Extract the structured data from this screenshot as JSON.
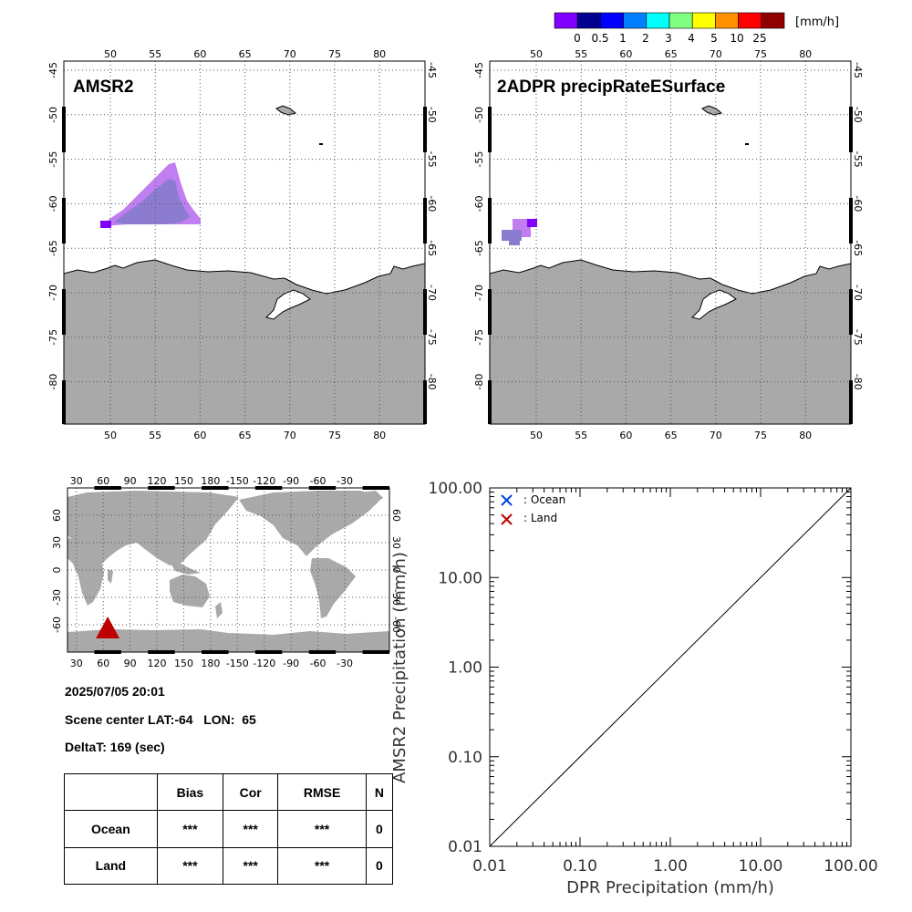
{
  "colorbar": {
    "unit": "[mm/h]",
    "tick_labels": [
      "0",
      "0.5",
      "1",
      "2",
      "3",
      "4",
      "5",
      "10",
      "25"
    ],
    "colors": [
      "#8000ff",
      "#000090",
      "#0000ff",
      "#0080ff",
      "#00ffff",
      "#80ff80",
      "#ffff00",
      "#ff9000",
      "#ff0000",
      "#900000"
    ]
  },
  "maps": [
    {
      "title": "AMSR2",
      "lon_ticks": [
        "50",
        "55",
        "60",
        "65",
        "70",
        "75",
        "80"
      ],
      "lat_ticks": [
        "-45",
        "-50",
        "-55",
        "-60",
        "-65",
        "-70",
        "-75",
        "-80"
      ]
    },
    {
      "title": "2ADPR precipRateESurface",
      "lon_ticks": [
        "50",
        "55",
        "60",
        "65",
        "70",
        "75",
        "80"
      ],
      "lat_ticks": [
        "-45",
        "-50",
        "-55",
        "-60",
        "-65",
        "-70",
        "-75",
        "-80"
      ]
    }
  ],
  "globe": {
    "lon_ticks": [
      "30",
      "60",
      "90",
      "120",
      "150",
      "180",
      "-150",
      "-120",
      "-90",
      "-60",
      "-30"
    ],
    "lat_ticks": [
      "60",
      "30",
      "0",
      "-30",
      "-60"
    ],
    "marker": {
      "lon": 65,
      "lat": -64,
      "color": "#c00000",
      "shape": "triangle"
    }
  },
  "info": {
    "datetime": "2025/07/05 20:01",
    "scene_center": "Scene center LAT:-64   LON:  65",
    "deltat": "DeltaT:  169 (sec)"
  },
  "stats_table": {
    "headers": [
      "",
      "Bias",
      "Cor",
      "RMSE",
      "N"
    ],
    "rows": [
      {
        "label": "Ocean",
        "bias": "***",
        "cor": "***",
        "rmse": "***",
        "n": "0"
      },
      {
        "label": "Land",
        "bias": "***",
        "cor": "***",
        "rmse": "***",
        "n": "0"
      }
    ]
  },
  "chart_data": {
    "type": "scatter",
    "xlabel": "DPR Precipitation (mm/h)",
    "ylabel": "AMSR2 Precipitation (mm/h)",
    "x_scale": "log",
    "y_scale": "log",
    "xlim": [
      0.01,
      100
    ],
    "ylim": [
      0.01,
      100
    ],
    "x_tick_labels": [
      "0.01",
      "0.10",
      "1.00",
      "10.00",
      "100.00"
    ],
    "y_tick_labels": [
      "0.01",
      "0.10",
      "1.00",
      "10.00",
      "100.00"
    ],
    "legend_position": "top-left",
    "series": [
      {
        "name": ": Ocean",
        "color": "#0044dd",
        "marker": "x",
        "points": []
      },
      {
        "name": ": Land",
        "color": "#c00000",
        "marker": "x",
        "points": []
      }
    ],
    "reference_line": "1:1 diagonal"
  }
}
